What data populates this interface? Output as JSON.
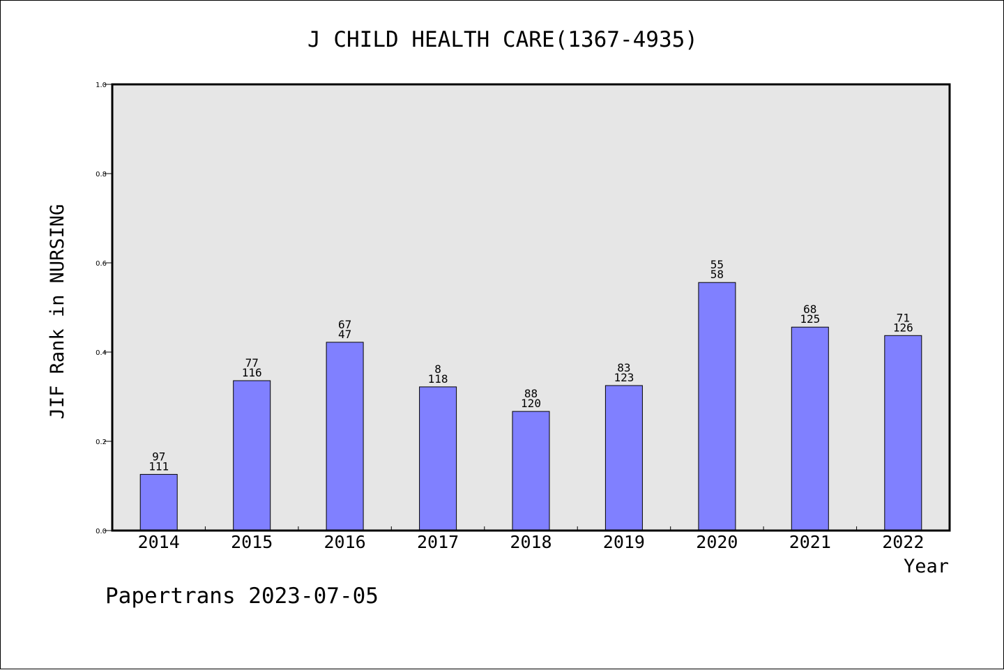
{
  "chart_data": {
    "type": "bar",
    "title": "J CHILD HEALTH CARE(1367-4935)",
    "xlabel": "Year",
    "ylabel": "JIF Rank in NURSING",
    "categories": [
      "2014",
      "2015",
      "2016",
      "2017",
      "2018",
      "2019",
      "2020",
      "2021",
      "2022"
    ],
    "values": [
      0.126,
      0.336,
      0.422,
      0.322,
      0.267,
      0.325,
      0.556,
      0.456,
      0.437
    ],
    "labels_top": [
      "97",
      "77",
      "67",
      "8",
      "88",
      "83",
      "55",
      "68",
      "71"
    ],
    "labels_bottom": [
      "111",
      "116",
      "47",
      "118",
      "120",
      "123",
      "58",
      "125",
      "126"
    ],
    "ylim": [
      0,
      1.0
    ],
    "yticks": [
      "0.0",
      "0.2",
      "0.4",
      "0.6",
      "0.8",
      "1.0"
    ],
    "grid": false,
    "bar_color": "#8080ff",
    "plot_background": "#e6e6e6"
  },
  "footer": "Papertrans 2023-07-05"
}
